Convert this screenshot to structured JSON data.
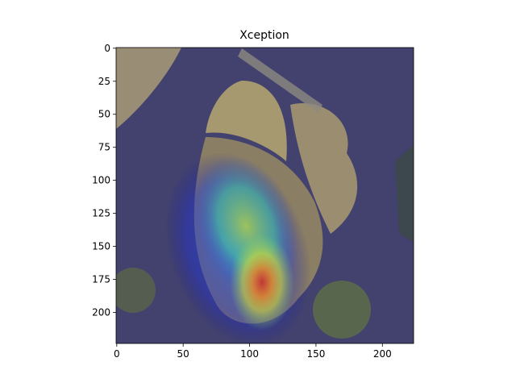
{
  "chart_data": {
    "type": "image",
    "title": "Xception",
    "xlim": [
      -0.5,
      223.5
    ],
    "ylim": [
      223.5,
      -0.5
    ],
    "xticks": [
      0,
      50,
      100,
      150,
      200
    ],
    "yticks": [
      0,
      25,
      50,
      75,
      100,
      125,
      150,
      175,
      200
    ]
  }
}
